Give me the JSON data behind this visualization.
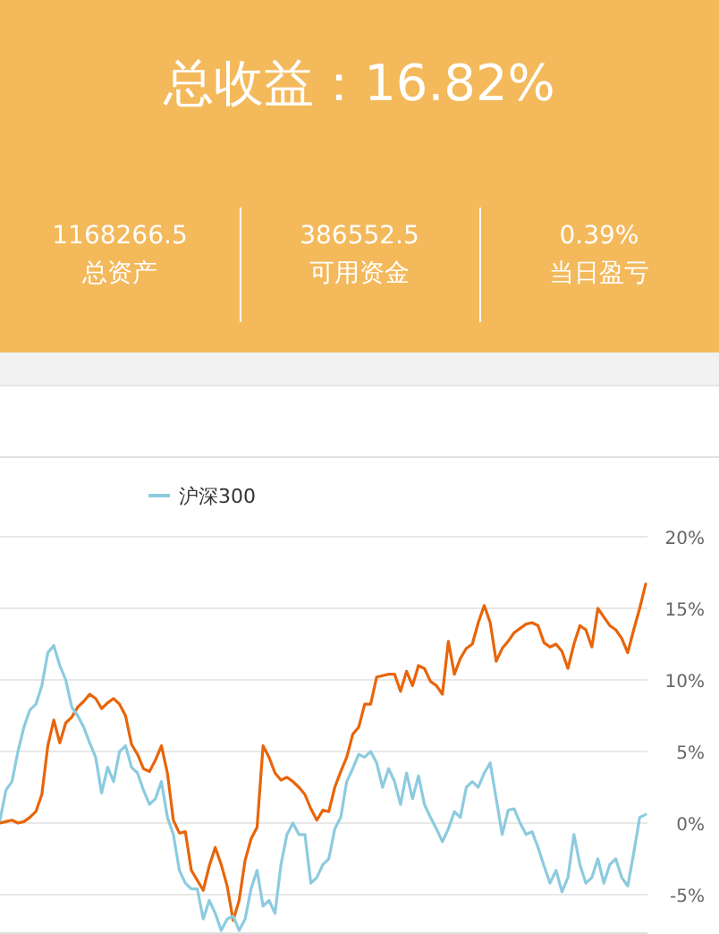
{
  "chart_data": [
    {
      "type": "other",
      "title": "总收益：16.82%",
      "categories": [
        "总资产",
        "可用资金",
        "当日盈亏"
      ],
      "annotations": [
        "1168266.5",
        "386552.5",
        "0.39%"
      ]
    },
    {
      "type": "line",
      "categories": [
        null,
        null,
        null,
        null,
        null,
        null,
        null,
        null,
        null,
        null,
        null,
        null,
        null,
        null,
        null,
        null,
        null,
        null,
        null,
        null,
        null,
        null,
        null,
        null,
        null,
        null,
        null,
        null,
        null,
        null,
        null,
        null,
        null,
        null,
        null,
        null,
        null,
        null,
        null,
        null,
        null,
        null,
        null,
        null,
        null,
        null,
        null,
        null,
        null,
        null,
        null,
        null,
        null,
        null,
        null,
        null,
        null,
        null,
        null,
        null,
        null,
        null,
        null,
        null,
        null,
        null,
        null,
        null,
        null,
        null,
        null,
        null,
        null,
        null,
        null,
        null,
        null,
        null,
        null,
        null,
        null,
        null,
        null,
        null,
        null,
        null,
        null,
        null,
        null,
        null,
        null,
        null,
        null,
        null,
        null,
        null,
        null,
        null,
        null,
        null,
        null,
        null,
        null,
        null,
        null,
        null,
        null,
        null,
        null
      ],
      "ylim": [
        -7.75,
        20
      ],
      "yticks": [
        {
          "value": -5,
          "label": "-5%"
        },
        {
          "value": 0,
          "label": "0%"
        },
        {
          "value": 5,
          "label": "5%"
        },
        {
          "value": 10,
          "label": "10%"
        },
        {
          "value": 15,
          "label": "15%"
        },
        {
          "value": 20,
          "label": "20%"
        }
      ],
      "tick_labels": "y",
      "grid": "y",
      "legend": "top left",
      "series": [
        {
          "color": "#e8650a",
          "values": [
            0.0,
            0.1,
            0.2,
            0.0,
            0.1,
            0.4,
            0.8,
            2.0,
            5.4,
            7.2,
            5.6,
            7.0,
            7.4,
            8.1,
            8.5,
            9.0,
            8.7,
            8.0,
            8.4,
            8.7,
            8.3,
            7.5,
            5.5,
            4.8,
            3.8,
            3.6,
            4.4,
            5.4,
            3.5,
            0.2,
            -0.7,
            -0.6,
            -3.3,
            -4.0,
            -4.7,
            -3.0,
            -1.7,
            -2.9,
            -4.4,
            -6.8,
            -5.4,
            -2.6,
            -1.1,
            -0.3,
            5.4,
            4.6,
            3.5,
            3.0,
            3.2,
            2.9,
            2.5,
            2.0,
            1.0,
            0.2,
            0.9,
            0.8,
            2.5,
            3.6,
            4.6,
            6.2,
            6.7,
            8.3,
            8.3,
            10.2,
            10.3,
            10.4,
            10.4,
            9.2,
            10.6,
            9.6,
            11.0,
            10.8,
            9.9,
            9.6,
            9.0,
            12.7,
            10.4,
            11.5,
            12.2,
            12.5,
            14.0,
            15.2,
            14.0,
            11.3,
            12.2,
            12.7,
            13.3,
            13.6,
            13.9,
            14.0,
            13.8,
            12.6,
            12.3,
            12.5,
            12.0,
            10.8,
            12.5,
            13.8,
            13.5,
            12.3,
            15.0,
            14.4,
            13.8,
            13.5,
            12.9,
            11.9,
            13.5,
            15.0,
            16.7
          ]
        },
        {
          "name": "沪深300",
          "color": "#8ccbdf",
          "values": [
            0.2,
            2.3,
            2.9,
            5.0,
            6.7,
            7.9,
            8.3,
            9.6,
            11.9,
            12.4,
            11.0,
            10.0,
            8.1,
            7.5,
            6.7,
            5.6,
            4.6,
            2.1,
            3.9,
            2.9,
            5.0,
            5.4,
            3.9,
            3.5,
            2.3,
            1.3,
            1.7,
            2.9,
            0.4,
            -0.8,
            -3.3,
            -4.2,
            -4.6,
            -4.6,
            -6.7,
            -5.4,
            -6.3,
            -7.5,
            -6.7,
            -6.5,
            -7.5,
            -6.7,
            -4.6,
            -3.3,
            -5.8,
            -5.4,
            -6.3,
            -2.9,
            -0.8,
            0.0,
            -0.8,
            -0.8,
            -4.2,
            -3.8,
            -2.9,
            -2.5,
            -0.4,
            0.4,
            2.9,
            3.8,
            4.8,
            4.6,
            5.0,
            4.2,
            2.5,
            3.8,
            2.9,
            1.3,
            3.5,
            1.7,
            3.3,
            1.3,
            0.4,
            -0.4,
            -1.3,
            -0.4,
            0.8,
            0.4,
            2.5,
            2.9,
            2.5,
            3.5,
            4.2,
            1.7,
            -0.8,
            0.9,
            1.0,
            0.0,
            -0.8,
            -0.6,
            -1.7,
            -3.0,
            -4.2,
            -3.3,
            -4.8,
            -3.8,
            -0.8,
            -2.9,
            -4.2,
            -3.8,
            -2.5,
            -4.2,
            -2.9,
            -2.5,
            -3.8,
            -4.4,
            -2.1,
            0.4,
            0.6
          ]
        }
      ]
    }
  ]
}
